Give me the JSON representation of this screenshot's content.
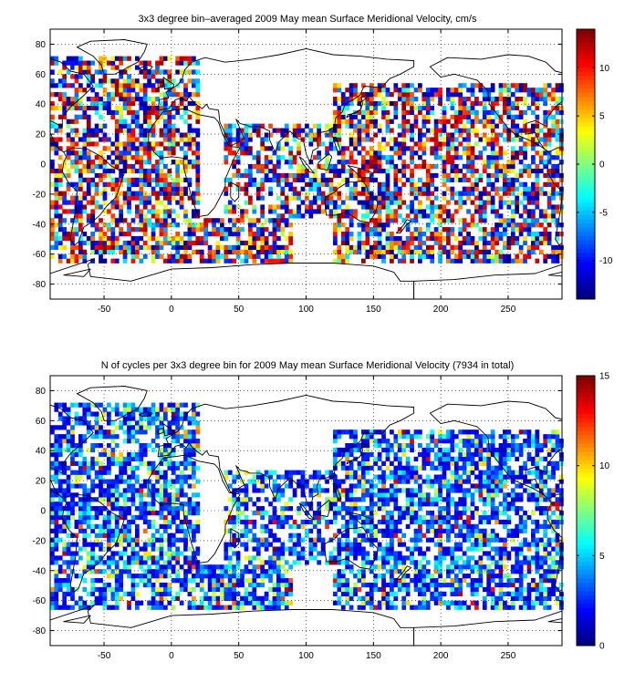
{
  "chart_data": [
    {
      "type": "heatmap",
      "title": "3x3 degree bin–averaged 2009 May mean Surface Meridional Velocity, cm/s",
      "xlabel": "",
      "ylabel": "",
      "xlim": [
        -90,
        290
      ],
      "ylim": [
        -90,
        90
      ],
      "xticks": [
        -50,
        0,
        50,
        100,
        150,
        200,
        250
      ],
      "yticks": [
        -80,
        -60,
        -40,
        -20,
        0,
        20,
        40,
        60,
        80
      ],
      "grid": true,
      "bin_size_deg": 3,
      "colorbar": {
        "colormap": "jet",
        "range": [
          -14,
          14
        ],
        "ticks": [
          -10,
          -5,
          0,
          5,
          10
        ]
      },
      "sampled_region_fraction": [
        {
          "lon": [
            -90,
            20
          ],
          "lat": [
            -66,
            73
          ],
          "density": 0.62
        },
        {
          "lon": [
            20,
            90
          ],
          "lat": [
            -66,
            -36
          ],
          "density": 0.68
        },
        {
          "lon": [
            40,
            120
          ],
          "lat": [
            -36,
            27
          ],
          "density": 0.55
        },
        {
          "lon": [
            120,
            290
          ],
          "lat": [
            -66,
            55
          ],
          "density": 0.64
        }
      ]
    },
    {
      "type": "heatmap",
      "title": "N of cycles per 3x3 degree bin for 2009 May mean Surface Meridional Velocity (7934 in total)",
      "xlabel": "",
      "ylabel": "",
      "xlim": [
        -90,
        290
      ],
      "ylim": [
        -90,
        90
      ],
      "xticks": [
        -50,
        0,
        50,
        100,
        150,
        200,
        250
      ],
      "yticks": [
        -80,
        -60,
        -40,
        -20,
        0,
        20,
        40,
        60,
        80
      ],
      "grid": true,
      "bin_size_deg": 3,
      "total_cycles": 7934,
      "colorbar": {
        "colormap": "jet",
        "range": [
          0,
          15
        ],
        "ticks": [
          0,
          5,
          10,
          15
        ]
      },
      "sampled_region_fraction": [
        {
          "lon": [
            -90,
            20
          ],
          "lat": [
            -66,
            73
          ],
          "density": 0.65
        },
        {
          "lon": [
            20,
            90
          ],
          "lat": [
            -66,
            -36
          ],
          "density": 0.7
        },
        {
          "lon": [
            40,
            120
          ],
          "lat": [
            -36,
            27
          ],
          "density": 0.55
        },
        {
          "lon": [
            120,
            290
          ],
          "lat": [
            -66,
            55
          ],
          "density": 0.66
        }
      ]
    }
  ]
}
